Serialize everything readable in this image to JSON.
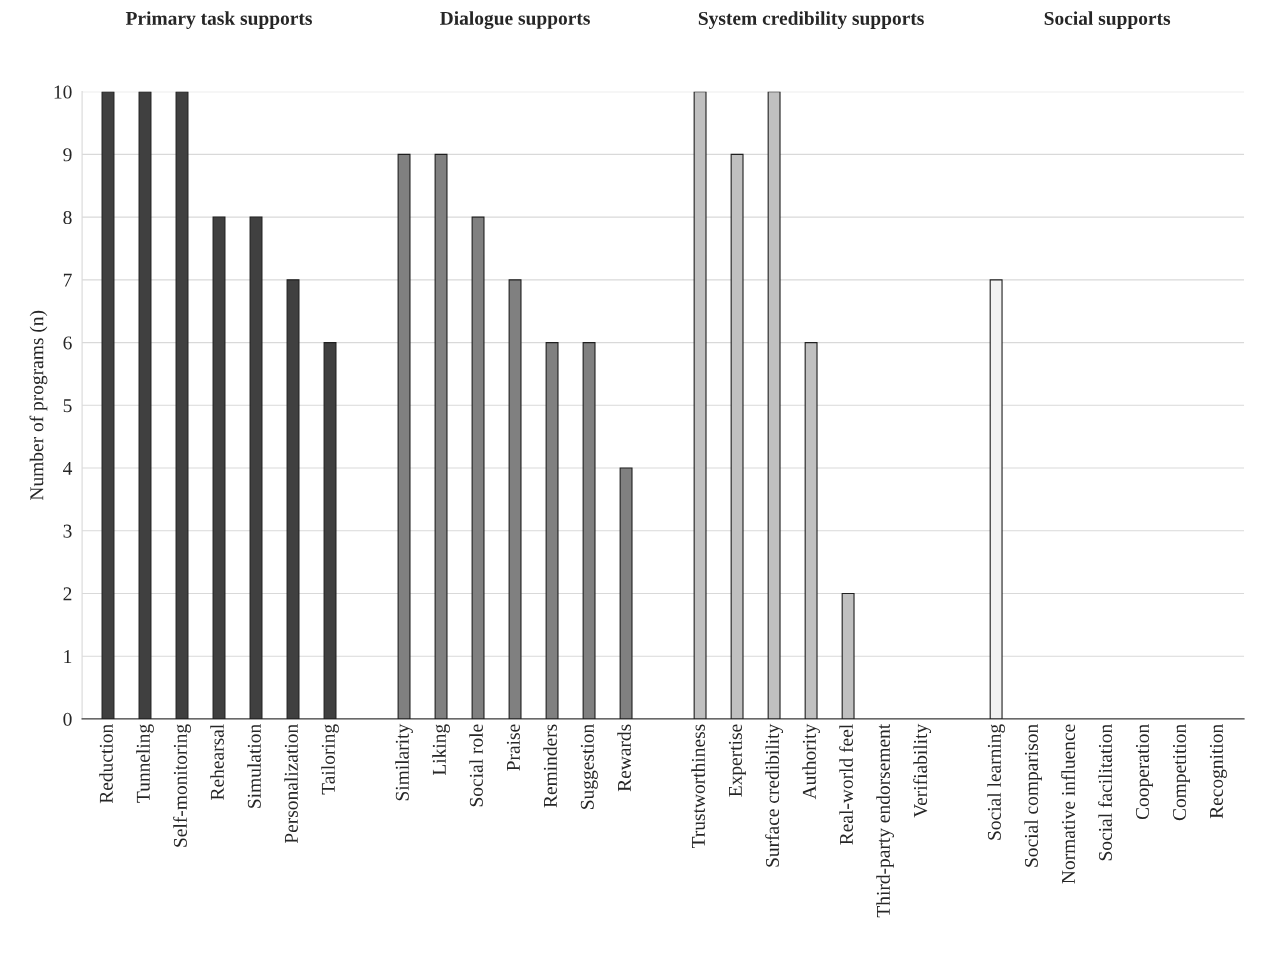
{
  "chart_data": {
    "type": "bar",
    "ylabel": "Number of programs (n)",
    "categories": [
      "Reduction",
      "Tunneling",
      "Self-monitoring",
      "Rehearsal",
      "Simulation",
      "Personalization",
      "Tailoring",
      null,
      "Similarity",
      "Liking",
      "Social role",
      "Praise",
      "Reminders",
      "Suggestion",
      "Rewards",
      null,
      "Trustworthiness",
      "Expertise",
      "Surface credibility",
      "Authority",
      "Real-world feel",
      "Third-party endorsement",
      "Verifiability",
      null,
      "Social learning",
      "Social comparison",
      "Normative influence",
      "Social facilitation",
      "Cooperation",
      "Competition",
      "Recognition"
    ],
    "series": [
      {
        "color": "#404040",
        "values": [
          10,
          10,
          10,
          8,
          8,
          7,
          6,
          null,
          null,
          null,
          null,
          null,
          null,
          null,
          null,
          null,
          null,
          null,
          null,
          null,
          null,
          null,
          null,
          null,
          null,
          null,
          null,
          null,
          null,
          null,
          null
        ]
      },
      {
        "color": "#808080",
        "values": [
          null,
          null,
          null,
          null,
          null,
          null,
          null,
          null,
          9,
          9,
          8,
          7,
          6,
          6,
          4,
          null,
          null,
          null,
          null,
          null,
          null,
          null,
          null,
          null,
          null,
          null,
          null,
          null,
          null,
          null,
          null
        ]
      },
      {
        "color": "#c0c0c0",
        "values": [
          null,
          null,
          null,
          null,
          null,
          null,
          null,
          null,
          null,
          null,
          null,
          null,
          null,
          null,
          null,
          null,
          10,
          9,
          10,
          6,
          2,
          0,
          0,
          null,
          null,
          null,
          null,
          null,
          null,
          null,
          null
        ]
      },
      {
        "color": "#f2f2f2",
        "values": [
          null,
          null,
          null,
          null,
          null,
          null,
          null,
          null,
          null,
          null,
          null,
          null,
          null,
          null,
          null,
          null,
          null,
          null,
          null,
          null,
          null,
          null,
          null,
          null,
          7,
          0,
          0,
          0,
          0,
          0,
          0
        ]
      }
    ],
    "annotations": [
      "Primary task supports",
      "Dialogue supports",
      "System credibility supports",
      "Social supports"
    ],
    "ylim": [
      0,
      10
    ],
    "yticks": [
      0,
      1,
      2,
      3,
      4,
      5,
      6,
      7,
      8,
      9,
      10
    ],
    "grid": "y",
    "legend": false
  }
}
